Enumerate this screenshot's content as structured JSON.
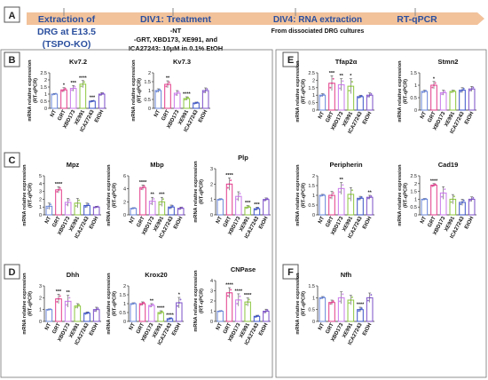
{
  "timeline": {
    "panel_letter": "A",
    "steps": [
      {
        "title": "Extraction of",
        "lines": [
          "DRG at E13.5",
          "(TSPO-KO)"
        ]
      },
      {
        "title": "DIV1: Treatment",
        "lines": [
          "-NT",
          "-GRT, XBD173, XE991, and",
          "ICA27243: 10μM in 0.1% EtOH"
        ]
      },
      {
        "title": "DIV4: RNA extraction",
        "lines": [
          "From dissociated DRG cultures"
        ]
      },
      {
        "title": "RT-qPCR",
        "lines": []
      }
    ]
  },
  "panel_letters": [
    "B",
    "C",
    "D",
    "E",
    "F"
  ],
  "colors": {
    "arrow": "#f2c29b",
    "title": "#2b4f9e",
    "panel_box": "#555555",
    "series": [
      "#6a86d8",
      "#e23a8a",
      "#c979ea",
      "#8cc63f",
      "#3a52c8",
      "#7b4fc7"
    ]
  },
  "chart_data": [
    {
      "type": "bar",
      "title": "Kv7.2",
      "ylabel": "mRNA relative expression (RT-qPCR)",
      "ylim": [
        0,
        2.5
      ],
      "yticks": [
        0,
        0.5,
        1,
        1.5,
        2,
        2.5
      ],
      "categories": [
        "NT",
        "GRT",
        "XBD173",
        "XE991",
        "ICA27243",
        "EtOH"
      ],
      "values": [
        1,
        1.3,
        1.4,
        1.7,
        0.5,
        1
      ],
      "errors": [
        0.05,
        0.15,
        0.2,
        0.25,
        0.05,
        0.1
      ],
      "sig": [
        "",
        "*",
        "***",
        "****",
        "***",
        ""
      ]
    },
    {
      "type": "bar",
      "title": "Kv7.3",
      "ylabel": "mRNA relative expression (RT-qPCR)",
      "ylim": [
        0,
        2
      ],
      "yticks": [
        0,
        0.5,
        1,
        1.5,
        2
      ],
      "categories": [
        "NT",
        "GRT",
        "XBD173",
        "XE991",
        "ICA27243",
        "EtOH"
      ],
      "values": [
        1,
        1.35,
        0.85,
        0.55,
        0.3,
        1
      ],
      "errors": [
        0.1,
        0.2,
        0.15,
        0.1,
        0.05,
        0.15
      ],
      "sig": [
        "",
        "**",
        "",
        "****",
        "",
        ""
      ]
    },
    {
      "type": "bar",
      "title": "Mpz",
      "ylabel": "mRNA relative expression (RT-qPCR)",
      "ylim": [
        0,
        5
      ],
      "yticks": [
        0,
        1,
        2,
        3,
        4,
        5
      ],
      "categories": [
        "NT",
        "GRT",
        "XBD173",
        "XE991",
        "ICA27243",
        "EtOH"
      ],
      "values": [
        1.1,
        3.2,
        1.6,
        1.5,
        1.2,
        1
      ],
      "errors": [
        0.4,
        0.4,
        0.5,
        0.6,
        0.3,
        0.1
      ],
      "sig": [
        "",
        "****",
        "",
        "",
        "",
        ""
      ]
    },
    {
      "type": "bar",
      "title": "Mbp",
      "ylabel": "mRNA relative expression (RT-qPCR)",
      "ylim": [
        0,
        6
      ],
      "yticks": [
        0,
        2,
        4,
        6
      ],
      "categories": [
        "NT",
        "GRT",
        "XBD173",
        "XE991",
        "ICA27243",
        "EtOH"
      ],
      "values": [
        1,
        4.2,
        2.1,
        2,
        1.2,
        1
      ],
      "errors": [
        0.1,
        0.4,
        0.6,
        0.7,
        0.3,
        0.2
      ],
      "sig": [
        "",
        "****",
        "**",
        "***",
        "",
        ""
      ]
    },
    {
      "type": "bar",
      "title": "Plp",
      "ylabel": "mRNA relative expression (RT-qPCR)",
      "ylim": [
        0,
        3
      ],
      "yticks": [
        0,
        1,
        2,
        3
      ],
      "categories": [
        "NT",
        "GRT",
        "XBD173",
        "XE991",
        "ICA27243",
        "EtOH"
      ],
      "values": [
        1,
        2,
        1.2,
        0.5,
        0.4,
        1
      ],
      "errors": [
        0.05,
        0.4,
        0.3,
        0.1,
        0.1,
        0.1
      ],
      "sig": [
        "",
        "****",
        "",
        "***",
        "***",
        ""
      ]
    },
    {
      "type": "bar",
      "title": "Dhh",
      "ylabel": "mRNA relative expression (RT-qPCR)",
      "ylim": [
        0,
        3
      ],
      "yticks": [
        0,
        1,
        2,
        3
      ],
      "categories": [
        "NT",
        "GRT",
        "XBD173",
        "XE991",
        "ICA27243",
        "EtOH"
      ],
      "values": [
        1,
        1.9,
        1.7,
        1.3,
        0.7,
        1
      ],
      "errors": [
        0.05,
        0.4,
        0.5,
        0.2,
        0.1,
        0.2
      ],
      "sig": [
        "",
        "***",
        "**",
        "",
        "",
        ""
      ]
    },
    {
      "type": "bar",
      "title": "Krox20",
      "ylabel": "mRNA relative expression (RT-qPCR)",
      "ylim": [
        0,
        2
      ],
      "yticks": [
        0,
        0.5,
        1,
        1.5,
        2
      ],
      "categories": [
        "NT",
        "GRT",
        "XBD173",
        "XE991",
        "ICA27243",
        "EtOH"
      ],
      "values": [
        1,
        1,
        0.9,
        0.5,
        0.15,
        1.05
      ],
      "errors": [
        0.05,
        0.1,
        0.1,
        0.1,
        0.05,
        0.3
      ],
      "sig": [
        "",
        "",
        "**",
        "****",
        "****",
        "*"
      ]
    },
    {
      "type": "bar",
      "title": "CNPase",
      "ylabel": "mRNA relative expression (RT-qPCR)",
      "ylim": [
        0,
        4
      ],
      "yticks": [
        0,
        1,
        2,
        3,
        4
      ],
      "categories": [
        "NT",
        "GRT",
        "XBD173",
        "XE991",
        "ICA27243",
        "EtOH"
      ],
      "values": [
        1,
        2.8,
        2.1,
        1.9,
        0.5,
        1
      ],
      "errors": [
        0.05,
        0.5,
        0.6,
        0.4,
        0.1,
        0.2
      ],
      "sig": [
        "",
        "****",
        "****",
        "****",
        "",
        ""
      ]
    },
    {
      "type": "bar",
      "title": "Tfap2α",
      "ylabel": "mRNA relative expression (RT-qPCR)",
      "ylim": [
        0,
        2.5
      ],
      "yticks": [
        0,
        0.5,
        1,
        1.5,
        2,
        2.5
      ],
      "categories": [
        "NT",
        "GRT",
        "XBD173",
        "XE991",
        "ICA27243",
        "EtOH"
      ],
      "values": [
        1,
        1.8,
        1.7,
        1.6,
        0.9,
        1
      ],
      "errors": [
        0.1,
        0.5,
        0.4,
        0.5,
        0.1,
        0.15
      ],
      "sig": [
        "",
        "***",
        "**",
        "*",
        "",
        ""
      ]
    },
    {
      "type": "bar",
      "title": "Stmn2",
      "ylabel": "mRNA relative expression (RT-qPCR)",
      "ylim": [
        0,
        1.5
      ],
      "yticks": [
        0,
        0.5,
        1,
        1.5
      ],
      "categories": [
        "NT",
        "GRT",
        "XBD173",
        "XE991",
        "ICA27243",
        "EtOH"
      ],
      "values": [
        0.75,
        1,
        0.7,
        0.75,
        0.8,
        0.85
      ],
      "errors": [
        0.05,
        0.15,
        0.1,
        0.05,
        0.1,
        0.1
      ],
      "sig": [
        "",
        "*",
        "",
        "",
        "",
        ""
      ]
    },
    {
      "type": "bar",
      "title": "Peripherin",
      "ylabel": "mRNA relative expression (RT-qPCR)",
      "ylim": [
        0,
        2
      ],
      "yticks": [
        0,
        0.5,
        1,
        1.5,
        2
      ],
      "categories": [
        "NT",
        "GRT",
        "XBD173",
        "XE991",
        "ICA27243",
        "EtOH"
      ],
      "values": [
        1,
        1,
        1.35,
        1.05,
        0.85,
        0.9
      ],
      "errors": [
        0.05,
        0.2,
        0.3,
        0.35,
        0.1,
        0.1
      ],
      "sig": [
        "",
        "",
        "**",
        "",
        "",
        "**"
      ]
    },
    {
      "type": "bar",
      "title": "Cad19",
      "ylabel": "mRNA relative expression (RT-qPCR)",
      "ylim": [
        0,
        2.5
      ],
      "yticks": [
        0,
        0.5,
        1,
        1.5,
        2,
        2.5
      ],
      "categories": [
        "NT",
        "GRT",
        "XBD173",
        "XE991",
        "ICA27243",
        "EtOH"
      ],
      "values": [
        1,
        1.9,
        1.4,
        1,
        0.8,
        1
      ],
      "errors": [
        0.05,
        0.1,
        0.4,
        0.3,
        0.2,
        0.15
      ],
      "sig": [
        "",
        "****",
        "",
        "",
        "",
        ""
      ]
    },
    {
      "type": "bar",
      "title": "Nfh",
      "ylabel": "mRNA relative expression (RT-qPCR)",
      "ylim": [
        0,
        1.5
      ],
      "yticks": [
        0,
        0.5,
        1,
        1.5
      ],
      "categories": [
        "NT",
        "GRT",
        "XBD173",
        "XE991",
        "ICA27243",
        "EtOH"
      ],
      "values": [
        1,
        0.8,
        1,
        0.9,
        0.5,
        1
      ],
      "errors": [
        0.05,
        0.1,
        0.25,
        0.2,
        0.1,
        0.2
      ],
      "sig": [
        "",
        "",
        "",
        "",
        "****",
        ""
      ]
    }
  ]
}
